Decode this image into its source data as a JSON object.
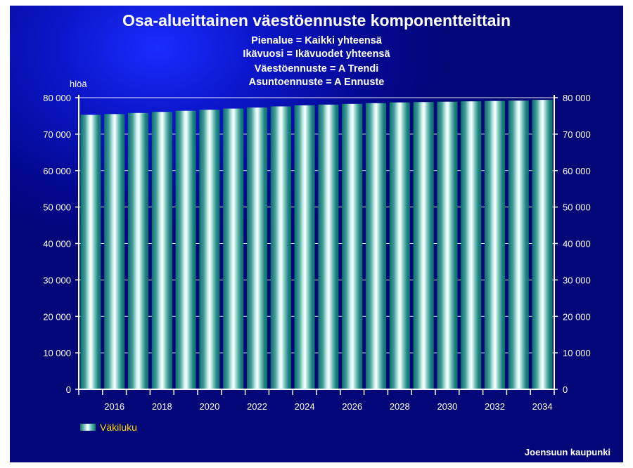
{
  "chart_data": {
    "type": "bar",
    "title": "Osa-alueittainen väestöennuste komponentteittain",
    "subtitles": [
      "Pienalue = Kaikki yhteensä",
      "Ikävuosi = Ikävuodet yhteensä",
      "Väestöennuste = A Trendi",
      "Asuntoennuste = A Ennuste"
    ],
    "ylabel": "hlöä",
    "ylim": [
      0,
      80000
    ],
    "yticks": [
      {
        "value": 0,
        "label": "0"
      },
      {
        "value": 10000,
        "label": "10 000"
      },
      {
        "value": 20000,
        "label": "20 000"
      },
      {
        "value": 30000,
        "label": "30 000"
      },
      {
        "value": 40000,
        "label": "40 000"
      },
      {
        "value": 50000,
        "label": "50 000"
      },
      {
        "value": 60000,
        "label": "60 000"
      },
      {
        "value": 70000,
        "label": "70 000"
      },
      {
        "value": 80000,
        "label": "80 000"
      }
    ],
    "categories": [
      2015,
      2016,
      2017,
      2018,
      2019,
      2020,
      2021,
      2022,
      2023,
      2024,
      2025,
      2026,
      2027,
      2028,
      2029,
      2030,
      2031,
      2032,
      2033,
      2034
    ],
    "xtick_labels": [
      "2016",
      "2018",
      "2020",
      "2022",
      "2024",
      "2026",
      "2028",
      "2030",
      "2032",
      "2034"
    ],
    "series": [
      {
        "name": "Väkiluku",
        "values": [
          75300,
          75500,
          75800,
          76100,
          76400,
          76700,
          77000,
          77300,
          77600,
          77900,
          78100,
          78300,
          78500,
          78700,
          78800,
          78900,
          79000,
          79100,
          79200,
          79400
        ]
      }
    ],
    "legend_position": "bottom-left",
    "grid": true,
    "colors": {
      "background": "#03088e",
      "bar_dark": "#0d6e6e",
      "bar_light": "#ffffff",
      "text": "#ffffff",
      "legend_text": "#ffd700"
    }
  },
  "footer": {
    "credit": "Joensuun kaupunki"
  }
}
